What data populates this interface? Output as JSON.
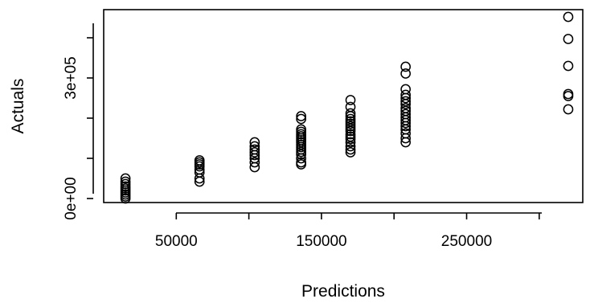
{
  "chart_data": {
    "type": "scatter",
    "title": "",
    "xlabel": "Predictions",
    "ylabel": "Actuals",
    "xlim": [
      0,
      330000
    ],
    "ylim": [
      -10000,
      470000
    ],
    "x_ticks": [
      50000,
      100000,
      150000,
      200000,
      250000,
      300000
    ],
    "x_tick_labels": [
      "50000",
      "",
      "150000",
      "",
      "250000",
      ""
    ],
    "y_ticks": [
      0,
      100000,
      200000,
      300000,
      400000
    ],
    "y_tick_labels": [
      "0e+00",
      "",
      "",
      "3e+05",
      ""
    ],
    "grid": false,
    "series": [
      {
        "points": [
          [
            15000,
            50000
          ],
          [
            15000,
            42000
          ],
          [
            15000,
            36000
          ],
          [
            15000,
            30000
          ],
          [
            15000,
            25000
          ],
          [
            15000,
            20000
          ],
          [
            15000,
            15000
          ],
          [
            15000,
            10000
          ],
          [
            15000,
            5000
          ],
          [
            15000,
            0
          ],
          [
            66000,
            95000
          ],
          [
            66000,
            90000
          ],
          [
            66000,
            85000
          ],
          [
            66000,
            80000
          ],
          [
            66000,
            72000
          ],
          [
            66000,
            65000
          ],
          [
            66000,
            50000
          ],
          [
            66000,
            42000
          ],
          [
            104000,
            140000
          ],
          [
            104000,
            130000
          ],
          [
            104000,
            122000
          ],
          [
            104000,
            115000
          ],
          [
            104000,
            108000
          ],
          [
            104000,
            100000
          ],
          [
            104000,
            90000
          ],
          [
            104000,
            78000
          ],
          [
            136000,
            205000
          ],
          [
            136000,
            198000
          ],
          [
            136000,
            172000
          ],
          [
            136000,
            166000
          ],
          [
            136000,
            160000
          ],
          [
            136000,
            155000
          ],
          [
            136000,
            150000
          ],
          [
            136000,
            145000
          ],
          [
            136000,
            140000
          ],
          [
            136000,
            134000
          ],
          [
            136000,
            128000
          ],
          [
            136000,
            122000
          ],
          [
            136000,
            116000
          ],
          [
            136000,
            110000
          ],
          [
            136000,
            100000
          ],
          [
            136000,
            90000
          ],
          [
            136000,
            85000
          ],
          [
            170000,
            245000
          ],
          [
            170000,
            228000
          ],
          [
            170000,
            212000
          ],
          [
            170000,
            205000
          ],
          [
            170000,
            198000
          ],
          [
            170000,
            192000
          ],
          [
            170000,
            186000
          ],
          [
            170000,
            180000
          ],
          [
            170000,
            174000
          ],
          [
            170000,
            168000
          ],
          [
            170000,
            160000
          ],
          [
            170000,
            154000
          ],
          [
            170000,
            148000
          ],
          [
            170000,
            140000
          ],
          [
            170000,
            130000
          ],
          [
            170000,
            122000
          ],
          [
            170000,
            115000
          ],
          [
            208000,
            328000
          ],
          [
            208000,
            311000
          ],
          [
            208000,
            272000
          ],
          [
            208000,
            258000
          ],
          [
            208000,
            250000
          ],
          [
            208000,
            242000
          ],
          [
            208000,
            235000
          ],
          [
            208000,
            225000
          ],
          [
            208000,
            218000
          ],
          [
            208000,
            210000
          ],
          [
            208000,
            202000
          ],
          [
            208000,
            195000
          ],
          [
            208000,
            188000
          ],
          [
            208000,
            180000
          ],
          [
            208000,
            172000
          ],
          [
            208000,
            162000
          ],
          [
            208000,
            150000
          ],
          [
            208000,
            140000
          ],
          [
            320000,
            452000
          ],
          [
            320000,
            397000
          ],
          [
            320000,
            330000
          ],
          [
            320000,
            260000
          ],
          [
            320000,
            255000
          ],
          [
            320000,
            222000
          ]
        ]
      }
    ]
  }
}
